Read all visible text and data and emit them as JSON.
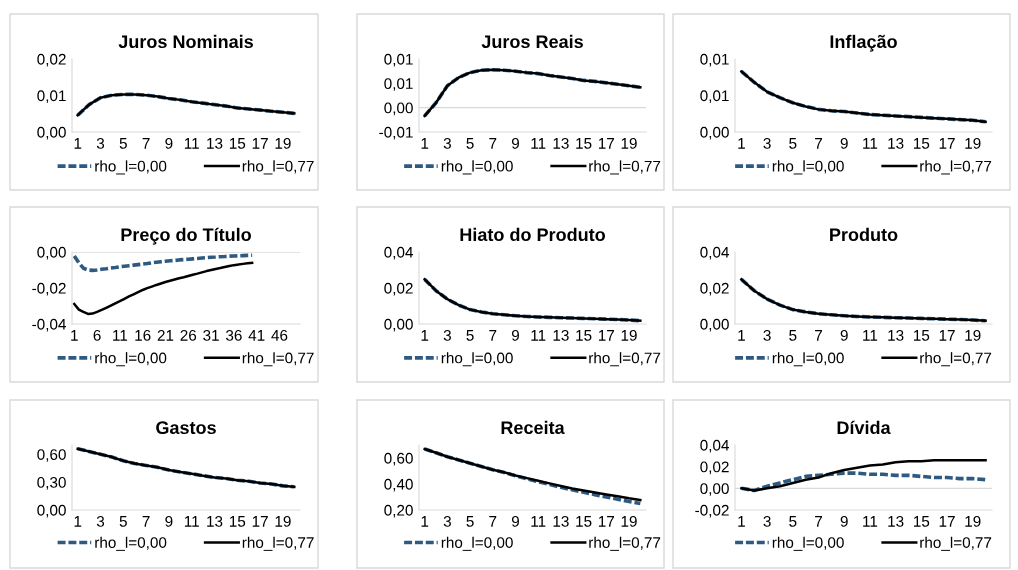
{
  "chart_data": [
    {
      "type": "line",
      "title": "Juros Nominais",
      "categories": [
        "1",
        null,
        "3",
        null,
        "5",
        null,
        "7",
        null,
        "9",
        null,
        "11",
        null,
        "13",
        null,
        "15",
        null,
        "17",
        null,
        "19",
        null
      ],
      "ylim": [
        0,
        0.02
      ],
      "yticks": [
        {
          "value": 0,
          "label": "0,00"
        },
        {
          "value": 0.01,
          "label": "0,01"
        },
        {
          "value": 0.02,
          "label": "0,02"
        }
      ],
      "grid": false,
      "legend": "bottom",
      "series": [
        {
          "name": "rho_l=0,00",
          "color": "#2e5a82",
          "line_style": "dashed",
          "values": [
            0.0046,
            0.0075,
            0.0094,
            0.0101,
            0.0103,
            0.0103,
            0.0101,
            0.0097,
            0.0092,
            0.0088,
            0.0083,
            0.0079,
            0.0075,
            0.0071,
            0.0066,
            0.0063,
            0.006,
            0.0057,
            0.0054,
            0.0051
          ]
        },
        {
          "name": "rho_l=0,77",
          "color": "#000000",
          "line_style": "solid",
          "values": [
            0.0046,
            0.0075,
            0.0094,
            0.0101,
            0.0103,
            0.0103,
            0.0101,
            0.0097,
            0.0092,
            0.0088,
            0.0083,
            0.0079,
            0.0075,
            0.0071,
            0.0066,
            0.0063,
            0.006,
            0.0057,
            0.0054,
            0.0051
          ]
        }
      ]
    },
    {
      "type": "line",
      "title": "Juros Reais",
      "categories": [
        "1",
        null,
        "3",
        null,
        "5",
        null,
        "7",
        null,
        "9",
        null,
        "11",
        null,
        "13",
        null,
        "15",
        null,
        "17",
        null,
        "19",
        null
      ],
      "ylim": [
        -0.005,
        0.01
      ],
      "yticks": [
        {
          "value": -0.005,
          "label": "-0,01"
        },
        {
          "value": 0,
          "label": "0,00"
        },
        {
          "value": 0.005,
          "label": "0,01"
        },
        {
          "value": 0.01,
          "label": "0,01"
        }
      ],
      "grid": false,
      "legend": "bottom",
      "ref_lines": [
        {
          "axis": "y",
          "value": 0,
          "color": "#d9d9d9"
        }
      ],
      "series": [
        {
          "name": "rho_l=0,00",
          "color": "#2e5a82",
          "line_style": "dashed",
          "values": [
            -0.0017,
            0.001,
            0.0045,
            0.0062,
            0.0072,
            0.0077,
            0.0078,
            0.0077,
            0.0075,
            0.0072,
            0.007,
            0.0066,
            0.0063,
            0.006,
            0.0056,
            0.0054,
            0.0051,
            0.0048,
            0.0045,
            0.0042
          ]
        },
        {
          "name": "rho_l=0,77",
          "color": "#000000",
          "line_style": "solid",
          "values": [
            -0.0017,
            0.001,
            0.0045,
            0.0062,
            0.0072,
            0.0077,
            0.0078,
            0.0077,
            0.0075,
            0.0072,
            0.007,
            0.0066,
            0.0063,
            0.006,
            0.0056,
            0.0054,
            0.0051,
            0.0048,
            0.0045,
            0.0042
          ]
        }
      ]
    },
    {
      "type": "line",
      "title": "Inflação",
      "categories": [
        "1",
        null,
        "3",
        null,
        "5",
        null,
        "7",
        null,
        "9",
        null,
        "11",
        null,
        "13",
        null,
        "15",
        null,
        "17",
        null,
        "19",
        null
      ],
      "ylim": [
        0,
        0.01
      ],
      "yticks": [
        {
          "value": 0,
          "label": "0,00"
        },
        {
          "value": 0.005,
          "label": "0,01"
        },
        {
          "value": 0.01,
          "label": "0,01"
        }
      ],
      "grid": false,
      "legend": "bottom",
      "series": [
        {
          "name": "rho_l=0,00",
          "color": "#2e5a82",
          "line_style": "dashed",
          "values": [
            0.0083,
            0.0068,
            0.0055,
            0.0047,
            0.004,
            0.0035,
            0.0031,
            0.0029,
            0.0028,
            0.0026,
            0.0024,
            0.0023,
            0.0022,
            0.0021,
            0.002,
            0.0019,
            0.0018,
            0.0017,
            0.0016,
            0.0014
          ]
        },
        {
          "name": "rho_l=0,77",
          "color": "#000000",
          "line_style": "solid",
          "values": [
            0.0083,
            0.0068,
            0.0055,
            0.0047,
            0.004,
            0.0035,
            0.0031,
            0.0029,
            0.0028,
            0.0026,
            0.0024,
            0.0023,
            0.0022,
            0.0021,
            0.002,
            0.0019,
            0.0018,
            0.0017,
            0.0016,
            0.0014
          ]
        }
      ]
    },
    {
      "type": "line",
      "title": "Preço do Título",
      "categories": [
        "1",
        null,
        null,
        null,
        null,
        "6",
        null,
        null,
        null,
        null,
        "11",
        null,
        null,
        null,
        null,
        "16",
        null,
        null,
        null,
        null,
        "21",
        null,
        null,
        null,
        null,
        "26",
        null,
        null,
        null,
        null,
        "31",
        null,
        null,
        null,
        null,
        "36",
        null,
        null,
        null,
        null,
        "41",
        null,
        null,
        null,
        null,
        "46",
        null,
        null,
        null,
        null
      ],
      "ylim": [
        -0.04,
        0
      ],
      "yticks": [
        {
          "value": -0.04,
          "label": "-0,04"
        },
        {
          "value": -0.02,
          "label": "-0,02"
        },
        {
          "value": 0,
          "label": "0,00"
        }
      ],
      "grid": false,
      "legend": "bottom",
      "ref_lines": [
        {
          "axis": "y",
          "value": 0,
          "color": "#d9d9d9"
        }
      ],
      "series": [
        {
          "name": "rho_l=0,00",
          "color": "#2e5a82",
          "line_style": "dashed",
          "values": [
            -0.0022,
            -0.006,
            -0.009,
            -0.01,
            -0.0102,
            -0.01,
            -0.0096,
            -0.0093,
            -0.0089,
            -0.0086,
            -0.0082,
            -0.0079,
            -0.0076,
            -0.0073,
            -0.007,
            -0.0067,
            -0.0064,
            -0.006,
            -0.0057,
            -0.0054,
            -0.0051,
            -0.0049,
            -0.0047,
            -0.0044,
            -0.0042,
            -0.004,
            -0.0038,
            -0.0036,
            -0.0033,
            -0.0031,
            -0.0029,
            -0.0028,
            -0.0026,
            -0.0025,
            -0.0023,
            -0.0022,
            -0.0021,
            -0.002,
            -0.0019,
            -0.0018,
            null,
            null,
            null,
            null,
            null,
            null,
            null,
            null,
            null,
            null
          ]
        },
        {
          "name": "rho_l=0,77",
          "color": "#000000",
          "line_style": "solid",
          "values": [
            -0.0289,
            -0.032,
            -0.0333,
            -0.0344,
            -0.0342,
            -0.0333,
            -0.0322,
            -0.031,
            -0.0298,
            -0.0285,
            -0.0273,
            -0.026,
            -0.0247,
            -0.0235,
            -0.0223,
            -0.0211,
            -0.0201,
            -0.0192,
            -0.0183,
            -0.0175,
            -0.0167,
            -0.016,
            -0.0153,
            -0.0146,
            -0.014,
            -0.0133,
            -0.0126,
            -0.012,
            -0.0113,
            -0.0106,
            -0.01,
            -0.0094,
            -0.0089,
            -0.0083,
            -0.0078,
            -0.0073,
            -0.007,
            -0.0066,
            -0.0063,
            -0.006,
            null,
            null,
            null,
            null,
            null,
            null,
            null,
            null,
            null,
            null
          ]
        }
      ]
    },
    {
      "type": "line",
      "title": "Hiato do Produto",
      "categories": [
        "1",
        null,
        "3",
        null,
        "5",
        null,
        "7",
        null,
        "9",
        null,
        "11",
        null,
        "13",
        null,
        "15",
        null,
        "17",
        null,
        "19",
        null
      ],
      "ylim": [
        0,
        0.04
      ],
      "yticks": [
        {
          "value": 0,
          "label": "0,00"
        },
        {
          "value": 0.02,
          "label": "0,02"
        },
        {
          "value": 0.04,
          "label": "0,04"
        }
      ],
      "grid": false,
      "legend": "bottom",
      "series": [
        {
          "name": "rho_l=0,00",
          "color": "#2e5a82",
          "line_style": "dashed",
          "values": [
            0.0248,
            0.0185,
            0.0138,
            0.0105,
            0.008,
            0.0067,
            0.0057,
            0.0051,
            0.0046,
            0.0042,
            0.0039,
            0.0037,
            0.0035,
            0.0033,
            0.0031,
            0.0029,
            0.0027,
            0.0025,
            0.0022,
            0.0018
          ]
        },
        {
          "name": "rho_l=0,77",
          "color": "#000000",
          "line_style": "solid",
          "values": [
            0.0248,
            0.0185,
            0.0138,
            0.0105,
            0.008,
            0.0067,
            0.0057,
            0.0051,
            0.0046,
            0.0042,
            0.0039,
            0.0037,
            0.0035,
            0.0033,
            0.0031,
            0.0029,
            0.0027,
            0.0025,
            0.0022,
            0.0018
          ]
        }
      ]
    },
    {
      "type": "line",
      "title": "Produto",
      "categories": [
        "1",
        null,
        "3",
        null,
        "5",
        null,
        "7",
        null,
        "9",
        null,
        "11",
        null,
        "13",
        null,
        "15",
        null,
        "17",
        null,
        "19",
        null
      ],
      "ylim": [
        0,
        0.04
      ],
      "yticks": [
        {
          "value": 0,
          "label": "0,00"
        },
        {
          "value": 0.02,
          "label": "0,02"
        },
        {
          "value": 0.04,
          "label": "0,04"
        }
      ],
      "grid": false,
      "legend": "bottom",
      "series": [
        {
          "name": "rho_l=0,00",
          "color": "#2e5a82",
          "line_style": "dashed",
          "values": [
            0.0248,
            0.0185,
            0.0138,
            0.0105,
            0.008,
            0.0067,
            0.0057,
            0.0051,
            0.0046,
            0.0042,
            0.0039,
            0.0037,
            0.0035,
            0.0033,
            0.0031,
            0.0029,
            0.0027,
            0.0025,
            0.0022,
            0.0018
          ]
        },
        {
          "name": "rho_l=0,77",
          "color": "#000000",
          "line_style": "solid",
          "values": [
            0.0248,
            0.0185,
            0.0138,
            0.0105,
            0.008,
            0.0067,
            0.0057,
            0.0051,
            0.0046,
            0.0042,
            0.0039,
            0.0037,
            0.0035,
            0.0033,
            0.0031,
            0.0029,
            0.0027,
            0.0025,
            0.0022,
            0.0018
          ]
        }
      ]
    },
    {
      "type": "line",
      "title": "Gastos",
      "categories": [
        "1",
        null,
        "3",
        null,
        "5",
        null,
        "7",
        null,
        "9",
        null,
        "11",
        null,
        "13",
        null,
        "15",
        null,
        "17",
        null,
        "19",
        null
      ],
      "ylim": [
        0,
        0.7
      ],
      "yticks": [
        {
          "value": 0,
          "label": "0,00"
        },
        {
          "value": 0.3,
          "label": "0,30"
        },
        {
          "value": 0.6,
          "label": "0,60"
        }
      ],
      "grid": false,
      "legend": "bottom",
      "series": [
        {
          "name": "rho_l=0,00",
          "color": "#2e5a82",
          "line_style": "dashed",
          "values": [
            0.66,
            0.63,
            0.6,
            0.57,
            0.53,
            0.5,
            0.48,
            0.46,
            0.43,
            0.41,
            0.39,
            0.37,
            0.35,
            0.34,
            0.32,
            0.31,
            0.29,
            0.28,
            0.26,
            0.25
          ]
        },
        {
          "name": "rho_l=0,77",
          "color": "#000000",
          "line_style": "solid",
          "values": [
            0.66,
            0.63,
            0.6,
            0.57,
            0.53,
            0.5,
            0.48,
            0.46,
            0.43,
            0.41,
            0.39,
            0.37,
            0.35,
            0.34,
            0.32,
            0.31,
            0.29,
            0.28,
            0.26,
            0.25
          ]
        }
      ]
    },
    {
      "type": "line",
      "title": "Receita",
      "categories": [
        "1",
        null,
        "3",
        null,
        "5",
        null,
        "7",
        null,
        "9",
        null,
        "11",
        null,
        "13",
        null,
        "15",
        null,
        "17",
        null,
        "19",
        null
      ],
      "ylim": [
        0.2,
        0.7
      ],
      "yticks": [
        {
          "value": 0.2,
          "label": "0,20"
        },
        {
          "value": 0.4,
          "label": "0,40"
        },
        {
          "value": 0.6,
          "label": "0,60"
        }
      ],
      "grid": false,
      "legend": "bottom",
      "series": [
        {
          "name": "rho_l=0,00",
          "color": "#2e5a82",
          "line_style": "dashed",
          "values": [
            0.669,
            0.64,
            0.61,
            0.585,
            0.56,
            0.535,
            0.51,
            0.488,
            0.463,
            0.44,
            0.418,
            0.397,
            0.375,
            0.355,
            0.337,
            0.318,
            0.3,
            0.283,
            0.265,
            0.25
          ]
        },
        {
          "name": "rho_l=0,77",
          "color": "#000000",
          "line_style": "solid",
          "values": [
            0.669,
            0.64,
            0.61,
            0.585,
            0.56,
            0.535,
            0.51,
            0.49,
            0.465,
            0.445,
            0.425,
            0.405,
            0.385,
            0.365,
            0.35,
            0.335,
            0.32,
            0.305,
            0.29,
            0.277
          ]
        }
      ]
    },
    {
      "type": "line",
      "title": "Dívida",
      "categories": [
        "1",
        null,
        "3",
        null,
        "5",
        null,
        "7",
        null,
        "9",
        null,
        "11",
        null,
        "13",
        null,
        "15",
        null,
        "17",
        null,
        "19",
        null
      ],
      "ylim": [
        -0.02,
        0.04
      ],
      "yticks": [
        {
          "value": -0.02,
          "label": "-0,02"
        },
        {
          "value": 0,
          "label": "0,00"
        },
        {
          "value": 0.02,
          "label": "0,02"
        },
        {
          "value": 0.04,
          "label": "0,04"
        }
      ],
      "grid": false,
      "legend": "bottom",
      "ref_lines": [
        {
          "axis": "y",
          "value": 0,
          "color": "#d9d9d9"
        }
      ],
      "series": [
        {
          "name": "rho_l=0,00",
          "color": "#2e5a82",
          "line_style": "dashed",
          "values": [
            0.0,
            -0.002,
            0.002,
            0.005,
            0.008,
            0.011,
            0.012,
            0.013,
            0.014,
            0.014,
            0.013,
            0.013,
            0.012,
            0.012,
            0.011,
            0.01,
            0.01,
            0.009,
            0.009,
            0.008
          ]
        },
        {
          "name": "rho_l=0,77",
          "color": "#000000",
          "line_style": "solid",
          "values": [
            0.0,
            -0.002,
            0.0,
            0.002,
            0.005,
            0.008,
            0.01,
            0.014,
            0.017,
            0.019,
            0.021,
            0.022,
            0.024,
            0.025,
            0.025,
            0.026,
            0.026,
            0.026,
            0.026,
            0.026
          ]
        }
      ]
    }
  ]
}
